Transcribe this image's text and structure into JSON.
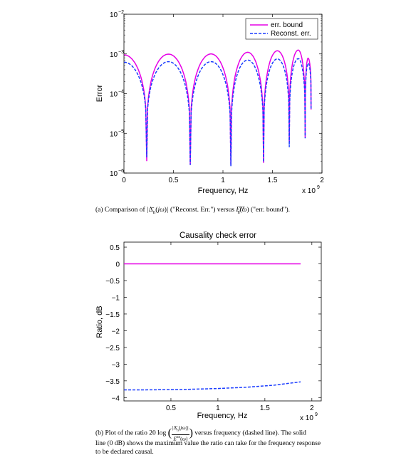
{
  "chart_data": [
    {
      "type": "line",
      "title": "",
      "xlabel": "Frequency, Hz",
      "ylabel": "Error",
      "x_exponent_label": "x 10",
      "x_exponent_power": "9",
      "y_scale": "log",
      "xlim": [
        0,
        2
      ],
      "ylim_exp": [
        -6,
        -2
      ],
      "x_ticks": [
        0,
        0.5,
        1,
        1.5,
        2
      ],
      "x_tick_labels": [
        "0",
        "0.5",
        "1",
        "1.5",
        "2"
      ],
      "y_tick_exps": [
        -6,
        -5,
        -4,
        -3,
        -2
      ],
      "y_tick_base": "10",
      "grid": false,
      "legend_position": "top-right",
      "notches": [
        0.0,
        0.23,
        0.67,
        1.08,
        1.41,
        1.67,
        1.83,
        1.89
      ],
      "series": [
        {
          "name": "err. bound",
          "color": "#e600e6",
          "style": "solid",
          "x": [
            0,
            0.23,
            0.45,
            0.67,
            0.88,
            1.08,
            1.25,
            1.41,
            1.55,
            1.67,
            1.76,
            1.83,
            1.86,
            1.89
          ],
          "y": [
            0.00095,
            2e-06,
            0.00099,
            1.6e-06,
            0.001,
            1.6e-06,
            0.0011,
            1.8e-06,
            0.0012,
            6e-06,
            0.00125,
            8e-06,
            0.00078,
            4e-05
          ]
        },
        {
          "name": "Reconst. err.",
          "color": "#1a3cff",
          "style": "dashed",
          "x": [
            0,
            0.23,
            0.45,
            0.67,
            0.88,
            1.08,
            1.25,
            1.41,
            1.55,
            1.67,
            1.76,
            1.83,
            1.86,
            1.89
          ],
          "y": [
            0.00062,
            2.5e-06,
            0.00064,
            1.6e-06,
            0.00064,
            1.5e-06,
            0.0007,
            1.9e-06,
            0.00075,
            4.5e-06,
            0.00076,
            7.5e-06,
            0.00058,
            4e-05
          ]
        }
      ]
    },
    {
      "type": "line",
      "title": "Causality check error",
      "xlabel": "Frequency, Hz",
      "ylabel": "Ratio, dB",
      "x_exponent_label": "x 10",
      "x_exponent_power": "9",
      "xlim": [
        0,
        2.1
      ],
      "ylim": [
        -4.1,
        0.65
      ],
      "x_ticks": [
        0.5,
        1,
        1.5,
        2
      ],
      "x_tick_labels": [
        "0.5",
        "1",
        "1.5",
        "2"
      ],
      "y_ticks": [
        0.5,
        0,
        -0.5,
        -1,
        -1.5,
        -2,
        -2.5,
        -3,
        -3.5,
        -4
      ],
      "y_tick_labels": [
        "0.5",
        "0",
        "−0.5",
        "−1",
        "−1.5",
        "−2",
        "−2.5",
        "−3",
        "−3.5",
        "−4"
      ],
      "grid": false,
      "series": [
        {
          "name": "",
          "color": "#e600e6",
          "style": "solid",
          "x": [
            0,
            1.88
          ],
          "y": [
            0,
            0
          ]
        },
        {
          "name": "",
          "color": "#1a3cff",
          "style": "dashed",
          "x": [
            0,
            0.2,
            0.6,
            1.0,
            1.3,
            1.6,
            1.88
          ],
          "y": [
            -3.77,
            -3.77,
            -3.76,
            -3.73,
            -3.69,
            -3.63,
            -3.53
          ]
        }
      ]
    }
  ],
  "captions": {
    "a_prefix": "(a) Comparison of",
    "a_mid": "(\"Reconst. Err.\") versus",
    "a_suffix": "(\"err. bound\").",
    "b_line1_prefix": "(b) Plot of the ratio 20 log",
    "b_line1_suffix": "versus frequency (dashed line). The solid",
    "b_line2": "line (0 dB) shows the maximum value the ratio can take for the frequency response",
    "b_line3": "to be declared causal."
  }
}
